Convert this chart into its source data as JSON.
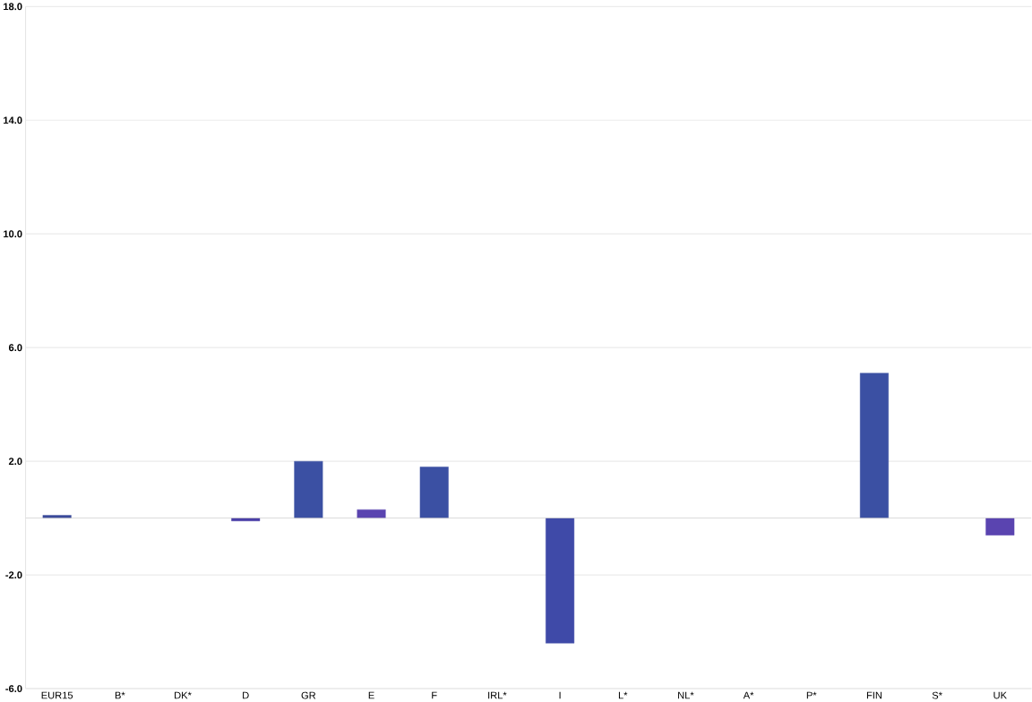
{
  "chart_data": {
    "type": "bar",
    "categories": [
      "EUR15",
      "B*",
      "DK*",
      "D",
      "GR",
      "E",
      "F",
      "IRL*",
      "I",
      "L*",
      "NL*",
      "A*",
      "P*",
      "FIN",
      "S*",
      "UK"
    ],
    "values": [
      0.1,
      null,
      null,
      -0.1,
      2.0,
      0.3,
      1.8,
      null,
      -4.4,
      null,
      null,
      null,
      null,
      5.1,
      null,
      -0.6
    ],
    "colors": [
      "#3a4a9a",
      "#3b50a3",
      "#3b50a3",
      "#4a3fa8",
      "#3b50a3",
      "#5a44b0",
      "#3b50a3",
      "#3b50a3",
      "#3f4aa8",
      "#3b50a3",
      "#3b50a3",
      "#3b50a3",
      "#3b50a3",
      "#3b50a3",
      "#3b50a3",
      "#5a44b0"
    ],
    "ylim": [
      -6,
      18
    ],
    "yticks": [
      {
        "value": -6,
        "label": "-6.0"
      },
      {
        "value": -2,
        "label": "-2.0"
      },
      {
        "value": 2,
        "label": "2.0"
      },
      {
        "value": 6,
        "label": "6.0"
      },
      {
        "value": 10,
        "label": "10.0"
      },
      {
        "value": 14,
        "label": "14.0"
      },
      {
        "value": 18,
        "label": "18.0"
      }
    ],
    "grid": "y"
  }
}
